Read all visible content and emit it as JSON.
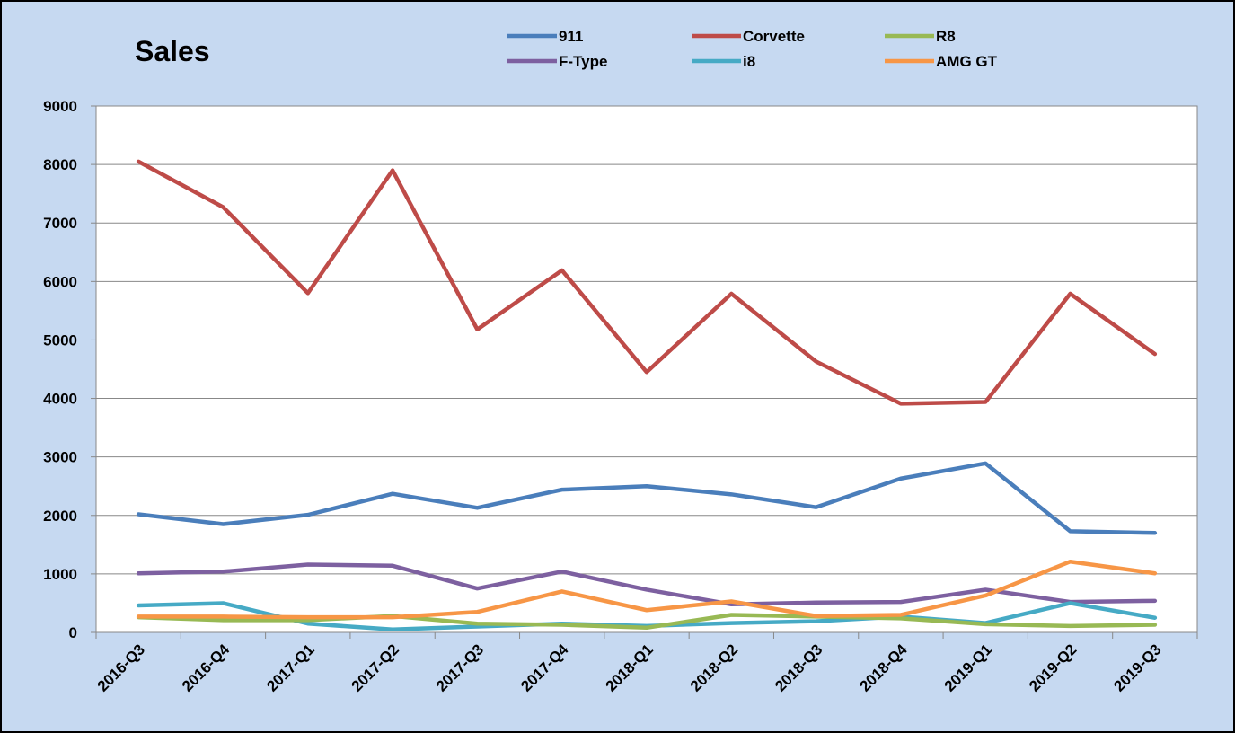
{
  "chart_data": {
    "type": "line",
    "title": "Sales",
    "categories": [
      "2016-Q3",
      "2016-Q4",
      "2017-Q1",
      "2017-Q2",
      "2017-Q3",
      "2017-Q4",
      "2018-Q1",
      "2018-Q2",
      "2018-Q3",
      "2018-Q4",
      "2019-Q1",
      "2019-Q2",
      "2019-Q3"
    ],
    "series": [
      {
        "name": "911",
        "color": "#4a7ebb",
        "values": [
          2020,
          1850,
          2010,
          2370,
          2130,
          2440,
          2500,
          2360,
          2140,
          2630,
          2890,
          1730,
          1700
        ]
      },
      {
        "name": "Corvette",
        "color": "#be4b48",
        "values": [
          8050,
          7270,
          5800,
          7900,
          5180,
          6190,
          4450,
          5790,
          4630,
          3910,
          3940,
          5790,
          4760
        ]
      },
      {
        "name": "R8",
        "color": "#98b954",
        "values": [
          260,
          210,
          210,
          280,
          150,
          130,
          80,
          300,
          270,
          240,
          140,
          110,
          130
        ]
      },
      {
        "name": "F-Type",
        "color": "#7d60a0",
        "values": [
          1010,
          1040,
          1160,
          1140,
          750,
          1040,
          730,
          480,
          510,
          520,
          730,
          520,
          540
        ]
      },
      {
        "name": "i8",
        "color": "#46aac5",
        "values": [
          460,
          500,
          150,
          50,
          100,
          150,
          110,
          160,
          190,
          270,
          160,
          500,
          250
        ]
      },
      {
        "name": "AMG GT",
        "color": "#f79646",
        "values": [
          270,
          270,
          260,
          260,
          350,
          700,
          380,
          530,
          280,
          300,
          630,
          1210,
          1010
        ]
      }
    ],
    "ylim": [
      0,
      9000
    ],
    "yticks": [
      0,
      1000,
      2000,
      3000,
      4000,
      5000,
      6000,
      7000,
      8000,
      9000
    ],
    "grid": true
  }
}
